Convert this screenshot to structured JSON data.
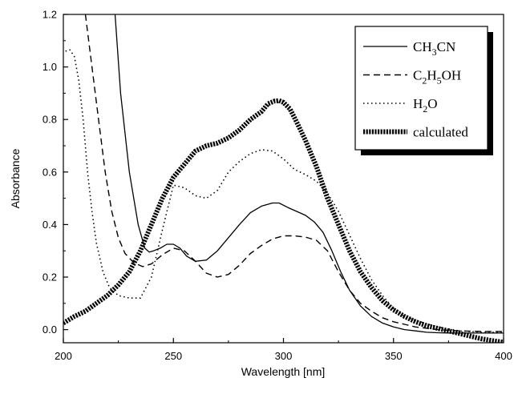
{
  "chart_data": {
    "type": "line",
    "xlabel": "Wavelength [nm]",
    "ylabel": "Absorbance",
    "xlim": [
      200,
      400
    ],
    "ylim": [
      -0.05,
      1.2
    ],
    "xticks": [
      "200",
      "250",
      "300",
      "350",
      "400"
    ],
    "yticks": [
      "0.0",
      "0.2",
      "0.4",
      "0.6",
      "0.8",
      "1.0",
      "1.2"
    ],
    "xtick_values": [
      200,
      250,
      300,
      350,
      400
    ],
    "ytick_values": [
      0.0,
      0.2,
      0.4,
      0.6,
      0.8,
      1.0,
      1.2
    ],
    "grid": false,
    "legend_position": "top-right",
    "series": [
      {
        "name": "CH3CN",
        "name_parts": [
          [
            "CH",
            false
          ],
          [
            "3",
            true
          ],
          [
            "CN",
            false
          ]
        ],
        "style": "solid",
        "x": [
          223.5,
          226,
          230,
          234,
          237,
          239,
          241,
          244,
          247,
          250,
          253,
          256,
          260,
          265,
          270,
          275,
          280,
          285,
          290,
          295,
          298,
          302,
          306,
          310,
          314,
          318,
          322,
          326,
          330,
          335,
          340,
          345,
          350,
          355,
          360,
          365,
          370,
          375,
          380,
          390,
          400
        ],
        "y": [
          1.2,
          0.9,
          0.6,
          0.4,
          0.31,
          0.295,
          0.3,
          0.31,
          0.325,
          0.325,
          0.31,
          0.28,
          0.26,
          0.265,
          0.3,
          0.35,
          0.4,
          0.445,
          0.47,
          0.482,
          0.482,
          0.465,
          0.45,
          0.435,
          0.41,
          0.37,
          0.3,
          0.22,
          0.15,
          0.09,
          0.05,
          0.025,
          0.01,
          0.0,
          -0.005,
          -0.01,
          -0.012,
          -0.013,
          -0.013,
          -0.013,
          -0.013
        ]
      },
      {
        "name": "C2H5OH",
        "name_parts": [
          [
            "C",
            false
          ],
          [
            "2",
            true
          ],
          [
            "H",
            false
          ],
          [
            "5",
            true
          ],
          [
            "OH",
            false
          ]
        ],
        "style": "dashed",
        "x": [
          210,
          213,
          216,
          219,
          222,
          225,
          228,
          232,
          236,
          240,
          245,
          250,
          255,
          260,
          265,
          270,
          275,
          280,
          285,
          290,
          295,
          300,
          305,
          310,
          315,
          320,
          325,
          330,
          335,
          340,
          345,
          350,
          355,
          360,
          370,
          380,
          390,
          400
        ],
        "y": [
          1.2,
          1.0,
          0.8,
          0.6,
          0.45,
          0.35,
          0.29,
          0.255,
          0.24,
          0.25,
          0.285,
          0.31,
          0.3,
          0.26,
          0.215,
          0.2,
          0.21,
          0.245,
          0.29,
          0.32,
          0.345,
          0.357,
          0.357,
          0.352,
          0.34,
          0.3,
          0.22,
          0.15,
          0.1,
          0.07,
          0.045,
          0.03,
          0.02,
          0.01,
          0.0,
          -0.005,
          -0.007,
          -0.007
        ]
      },
      {
        "name": "H2O",
        "name_parts": [
          [
            "H",
            false
          ],
          [
            "2",
            true
          ],
          [
            "O",
            false
          ]
        ],
        "style": "dotted",
        "x": [
          201,
          203,
          205,
          207,
          209,
          211,
          213,
          215,
          218,
          221,
          225,
          230,
          235,
          240,
          245,
          250,
          255,
          260,
          265,
          270,
          275,
          280,
          285,
          290,
          295,
          300,
          305,
          310,
          315,
          320,
          325,
          330,
          335,
          340,
          345,
          350,
          355,
          360,
          370,
          380,
          390,
          400
        ],
        "y": [
          1.06,
          1.065,
          1.04,
          0.95,
          0.8,
          0.6,
          0.45,
          0.33,
          0.22,
          0.16,
          0.13,
          0.12,
          0.12,
          0.2,
          0.38,
          0.55,
          0.54,
          0.51,
          0.5,
          0.53,
          0.6,
          0.64,
          0.67,
          0.685,
          0.68,
          0.65,
          0.61,
          0.59,
          0.565,
          0.52,
          0.45,
          0.36,
          0.27,
          0.19,
          0.13,
          0.08,
          0.05,
          0.035,
          0.01,
          -0.005,
          -0.01,
          -0.01
        ]
      },
      {
        "name": "calculated",
        "name_parts": [
          [
            "calculated",
            false
          ]
        ],
        "style": "thick",
        "x": [
          200,
          205,
          210,
          215,
          220,
          225,
          230,
          235,
          240,
          245,
          250,
          255,
          260,
          265,
          270,
          275,
          280,
          285,
          290,
          293,
          296,
          298,
          300,
          303,
          306,
          310,
          315,
          320,
          325,
          330,
          335,
          340,
          345,
          350,
          355,
          360,
          365,
          370,
          375,
          380,
          385,
          390,
          395,
          400
        ],
        "y": [
          0.025,
          0.05,
          0.07,
          0.1,
          0.13,
          0.17,
          0.22,
          0.3,
          0.4,
          0.5,
          0.58,
          0.63,
          0.68,
          0.7,
          0.71,
          0.73,
          0.76,
          0.8,
          0.83,
          0.86,
          0.87,
          0.872,
          0.865,
          0.84,
          0.79,
          0.72,
          0.62,
          0.5,
          0.4,
          0.3,
          0.22,
          0.16,
          0.11,
          0.075,
          0.05,
          0.03,
          0.015,
          0.005,
          -0.005,
          -0.015,
          -0.025,
          -0.035,
          -0.042,
          -0.048
        ]
      }
    ]
  }
}
